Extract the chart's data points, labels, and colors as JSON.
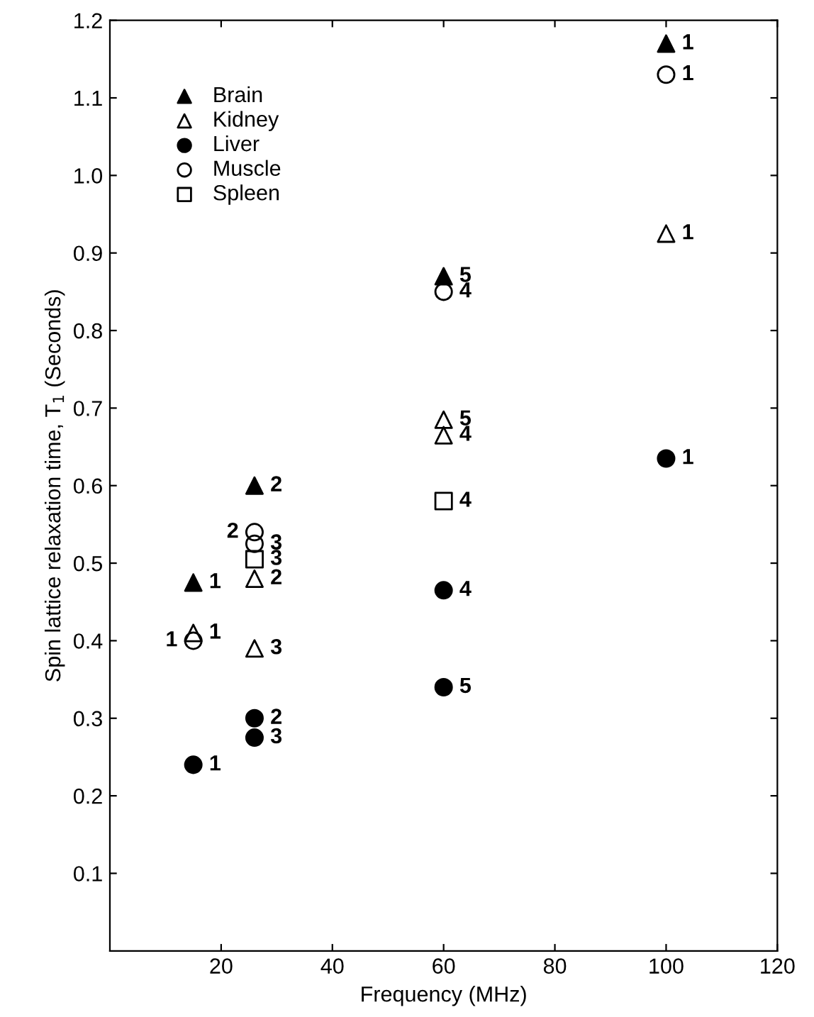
{
  "chart_data": {
    "type": "scatter",
    "xlabel": "Frequency (MHz)",
    "ylabel": "Spin lattice relaxation time, T$_{1}$ (Seconds)",
    "xlim": [
      0,
      120
    ],
    "xticks": [
      20,
      40,
      60,
      80,
      100,
      120
    ],
    "ylim": [
      0,
      1.2
    ],
    "yticks": [
      0.1,
      0.2,
      0.3,
      0.4,
      0.5,
      0.6,
      0.7,
      0.8,
      0.9,
      {
        "value": 1.0,
        "label": "1.0"
      },
      1.1,
      1.2
    ],
    "grid": false,
    "legend": "top left",
    "series": [
      {
        "name": "Brain",
        "color": "#000000",
        "marker": "triangle",
        "x": [
          15,
          26,
          60,
          100
        ],
        "values": [
          0.475,
          0.6,
          0.87,
          1.17
        ]
      },
      {
        "name": "Kidney",
        "color": "#000000",
        "marker": "triangle-open",
        "x": [
          15,
          26,
          26,
          60,
          60,
          100
        ],
        "values": [
          0.41,
          0.48,
          0.39,
          0.685,
          0.665,
          0.925
        ]
      },
      {
        "name": "Liver",
        "color": "#000000",
        "marker": "circle",
        "x": [
          15,
          26,
          26,
          60,
          60,
          100
        ],
        "values": [
          0.24,
          0.3,
          0.275,
          0.465,
          0.34,
          0.635
        ]
      },
      {
        "name": "Muscle",
        "color": "#000000",
        "marker": "circle-open",
        "x": [
          15,
          26,
          26,
          60,
          100
        ],
        "values": [
          0.4,
          0.54,
          0.525,
          0.85,
          1.13
        ]
      },
      {
        "name": "Spleen",
        "color": "#000000",
        "marker": "square-open",
        "x": [
          26,
          60
        ],
        "values": [
          0.505,
          0.58
        ]
      }
    ],
    "annotations": [
      {
        "text": "1",
        "x": 15,
        "y": 0.475
      },
      {
        "text": "2",
        "x": 26,
        "y": 0.6
      },
      {
        "text": "5",
        "x": 60,
        "y": 0.87
      },
      {
        "text": "1",
        "x": 100,
        "y": 1.17
      },
      {
        "text": "1",
        "x": 15,
        "y": 0.41
      },
      {
        "text": "3",
        "x": 26,
        "y": 0.39
      },
      {
        "text": "5",
        "x": 60,
        "y": 0.685
      },
      {
        "text": "4",
        "x": 60,
        "y": 0.665
      },
      {
        "text": "1",
        "x": 100,
        "y": 0.925
      },
      {
        "text": "1",
        "x": 15,
        "y": 0.24
      },
      {
        "text": "2",
        "x": 26,
        "y": 0.3
      },
      {
        "text": "3",
        "x": 26,
        "y": 0.275
      },
      {
        "text": "4",
        "x": 60,
        "y": 0.465
      },
      {
        "text": "5",
        "x": 60,
        "y": 0.34
      },
      {
        "text": "1",
        "x": 100,
        "y": 0.635
      },
      {
        "text": "3",
        "x": 26,
        "y": 0.525
      },
      {
        "text": "3",
        "x": 26,
        "y": 0.505
      },
      {
        "text": "2",
        "x": 26,
        "y": 0.54
      },
      {
        "text": "2",
        "x": 26,
        "y": 0.48
      },
      {
        "text": "1",
        "x": 15,
        "y": 0.4
      },
      {
        "text": "4",
        "x": 60,
        "y": 0.85
      },
      {
        "text": "1",
        "x": 100,
        "y": 1.13
      },
      {
        "text": "4",
        "x": 60,
        "y": 0.58
      }
    ]
  }
}
